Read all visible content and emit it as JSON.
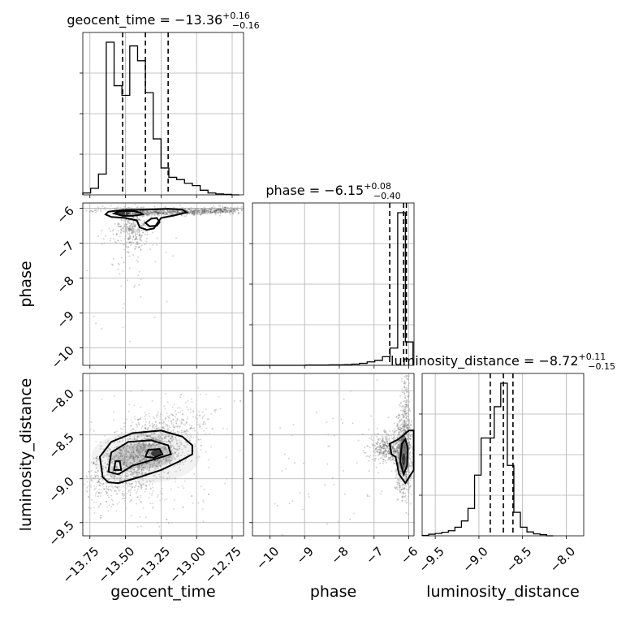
{
  "chart_data": {
    "type": "corner",
    "parameters": [
      "geocent_time",
      "phase",
      "luminosity_distance"
    ],
    "axis_labels": {
      "geocent_time": "geocent_time",
      "phase": "phase",
      "luminosity_distance": "luminosity_distance"
    },
    "titles": [
      {
        "param": "geocent_time",
        "text": "geocent_time = −13.36",
        "plus": "+0.16",
        "minus": "−0.16"
      },
      {
        "param": "phase",
        "text": "phase = −6.15",
        "plus": "+0.08",
        "minus": "−0.40"
      },
      {
        "param": "luminosity_distance",
        "text": "luminosity_distance = −8.72",
        "plus": "+0.11",
        "minus": "−0.15"
      }
    ],
    "ranges": {
      "geocent_time": [
        -13.8,
        -12.67
      ],
      "phase": [
        -10.5,
        -5.85
      ],
      "luminosity_distance": [
        -9.65,
        -7.8
      ]
    },
    "ticks": {
      "geocent_time": [
        -13.75,
        -13.5,
        -13.25,
        -13.0,
        -12.75
      ],
      "phase": [
        -10,
        -9,
        -8,
        -7,
        -6
      ],
      "luminosity_distance": [
        -9.5,
        -9.0,
        -8.5,
        -8.0
      ]
    },
    "tick_labels": {
      "geocent_time": [
        "−13.75",
        "−13.50",
        "−13.25",
        "−13.00",
        "−12.75"
      ],
      "phase": [
        "−10",
        "−9",
        "−8",
        "−7",
        "−6"
      ],
      "luminosity_distance": [
        "−9.5",
        "−9.0",
        "−8.5",
        "−8.0"
      ]
    },
    "quantiles": {
      "geocent_time": [
        -13.52,
        -13.36,
        -13.2
      ],
      "phase": [
        -6.55,
        -6.15,
        -6.07
      ],
      "luminosity_distance": [
        -8.87,
        -8.72,
        -8.61
      ]
    },
    "histograms": {
      "geocent_time": {
        "edges": [
          -13.8,
          -13.745,
          -13.69,
          -13.635,
          -13.58,
          -13.525,
          -13.47,
          -13.415,
          -13.36,
          -13.305,
          -13.25,
          -13.195,
          -13.14,
          -13.085,
          -13.03,
          -12.975,
          -12.92,
          -12.865,
          -12.81,
          -12.755,
          -12.7
        ],
        "counts": [
          4,
          14,
          45,
          330,
          236,
          215,
          322,
          290,
          221,
          121,
          58,
          38,
          33,
          25,
          20,
          10,
          4,
          2,
          1,
          0
        ]
      },
      "phase": {
        "edges": [
          -10.5,
          -10.28,
          -10.06,
          -9.84,
          -9.62,
          -9.4,
          -9.18,
          -8.96,
          -8.74,
          -8.52,
          -8.3,
          -8.08,
          -7.86,
          -7.64,
          -7.42,
          -7.2,
          -6.98,
          -6.76,
          -6.54,
          -6.32,
          -6.1,
          -5.88
        ],
        "counts": [
          0,
          0,
          0,
          0,
          0,
          0,
          0,
          1,
          1,
          1,
          2,
          2,
          3,
          5,
          8,
          14,
          20,
          35,
          70,
          620,
          95
        ]
      },
      "luminosity_distance": {
        "edges": [
          -9.65,
          -9.575,
          -9.5,
          -9.425,
          -9.35,
          -9.275,
          -9.2,
          -9.125,
          -9.05,
          -8.975,
          -8.9,
          -8.825,
          -8.75,
          -8.675,
          -8.6,
          -8.525,
          -8.45,
          -8.375,
          -8.3,
          -8.225,
          -8.15
        ],
        "counts": [
          1,
          4,
          6,
          9,
          13,
          22,
          38,
          70,
          155,
          250,
          250,
          330,
          390,
          180,
          60,
          22,
          10,
          5,
          3,
          0
        ]
      }
    },
    "grid": true
  }
}
